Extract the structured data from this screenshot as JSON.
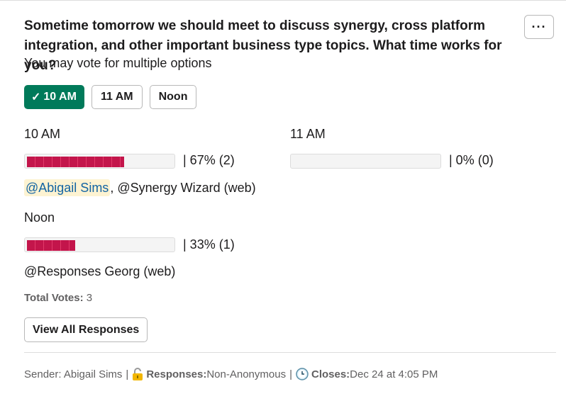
{
  "poll": {
    "question": "Sometime tomorrow we should meet to discuss synergy, cross platform integration, and other important business type topics. What time works for you?",
    "subtitle": "You may vote for multiple options",
    "more_label": "···",
    "options": [
      {
        "label": "10 AM",
        "selected": true,
        "check": "✓"
      },
      {
        "label": "11 AM",
        "selected": false
      },
      {
        "label": "Noon",
        "selected": false
      }
    ],
    "results": [
      {
        "label": "10 AM",
        "percent": 67,
        "stat": "|  67% (2)",
        "voter_mention": "@Abigail Sims",
        "voter_rest": ", @Synergy Wizard (web)"
      },
      {
        "label": "11 AM",
        "percent": 0,
        "stat": "|  0% (0)",
        "voter_mention": "",
        "voter_rest": ""
      },
      {
        "label": "Noon",
        "percent": 33,
        "stat": "|  33% (1)",
        "voter_mention": "",
        "voter_rest": "@Responses Georg (web)"
      }
    ],
    "total_label": "Total Votes:",
    "total_value": " 3",
    "view_all_label": "View All Responses"
  },
  "footer": {
    "sender": "Sender: Abigail Sims",
    "sep": "|",
    "responses_label": "Responses:",
    "responses_value": " Non-Anonymous",
    "closes_label": "Closes:",
    "closes_value": " Dec 24 at 4:05 PM",
    "lock_icon": "lock-icon",
    "clock_icon": "clock-icon"
  },
  "colors": {
    "selected_bg": "#007a5a",
    "bar_fill": "#c3154b",
    "mention_bg": "#fdf3d2",
    "mention_text": "#1264a3"
  }
}
